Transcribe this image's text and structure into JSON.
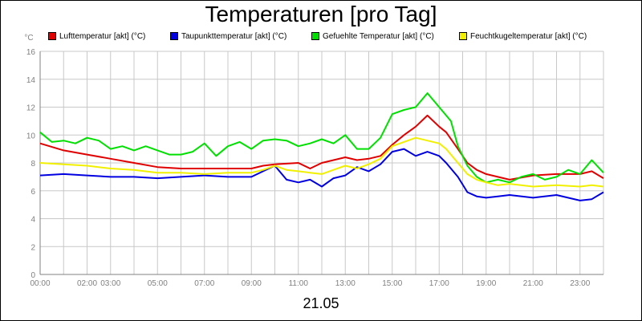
{
  "chart_data": {
    "type": "line",
    "title": "Temperaturen [pro Tag]",
    "xlabel": "21.05",
    "ylabel": "°C",
    "ylim": [
      0,
      16
    ],
    "yticks": [
      0,
      2,
      4,
      6,
      8,
      10,
      12,
      14,
      16
    ],
    "xlim": [
      0,
      24
    ],
    "x_tick_labels": [
      {
        "hour": 0,
        "label": "00:00"
      },
      {
        "hour": 2,
        "label": "02:00"
      },
      {
        "hour": 3,
        "label": "03:00"
      },
      {
        "hour": 5,
        "label": "05:00"
      },
      {
        "hour": 7,
        "label": "07:00"
      },
      {
        "hour": 9,
        "label": "09:00"
      },
      {
        "hour": 11,
        "label": "11:00"
      },
      {
        "hour": 13,
        "label": "13:00"
      },
      {
        "hour": 15,
        "label": "15:00"
      },
      {
        "hour": 17,
        "label": "17:00"
      },
      {
        "hour": 19,
        "label": "19:00"
      },
      {
        "hour": 21,
        "label": "21:00"
      },
      {
        "hour": 23,
        "label": "23:00"
      }
    ],
    "grid": true,
    "series": [
      {
        "name": "Lufttemperatur [akt] (°C)",
        "color": "#e00000",
        "x": [
          0,
          1,
          2,
          3,
          4,
          5,
          6,
          7,
          8,
          9,
          9.5,
          10,
          11,
          11.5,
          12,
          13,
          13.5,
          14,
          14.5,
          15,
          15.5,
          16,
          16.5,
          17,
          17.3,
          17.8,
          18.2,
          18.6,
          19,
          19.5,
          20,
          21,
          22,
          23,
          23.5,
          24
        ],
        "values": [
          9.4,
          8.9,
          8.6,
          8.3,
          8.0,
          7.7,
          7.6,
          7.6,
          7.6,
          7.6,
          7.8,
          7.9,
          8.0,
          7.6,
          8.0,
          8.4,
          8.2,
          8.3,
          8.5,
          9.3,
          10.0,
          10.6,
          11.4,
          10.6,
          10.2,
          9.0,
          8.0,
          7.5,
          7.2,
          7.0,
          6.8,
          7.1,
          7.2,
          7.2,
          7.4,
          6.9
        ]
      },
      {
        "name": "Taupunkttemperatur [akt] (°C)",
        "color": "#0000e0",
        "x": [
          0,
          1,
          2,
          3,
          4,
          5,
          6,
          7,
          8,
          9,
          9.5,
          10,
          10.5,
          11,
          11.5,
          12,
          12.5,
          13,
          13.5,
          14,
          14.5,
          15,
          15.5,
          16,
          16.5,
          17,
          17.3,
          17.8,
          18.2,
          18.6,
          19,
          19.5,
          20,
          21,
          22,
          23,
          23.5,
          24
        ],
        "values": [
          7.1,
          7.2,
          7.1,
          7.0,
          7.0,
          6.9,
          7.0,
          7.1,
          7.0,
          7.0,
          7.4,
          7.8,
          6.8,
          6.6,
          6.8,
          6.3,
          6.9,
          7.1,
          7.7,
          7.4,
          7.9,
          8.8,
          9.0,
          8.5,
          8.8,
          8.5,
          8.0,
          7.0,
          5.9,
          5.6,
          5.5,
          5.6,
          5.7,
          5.5,
          5.7,
          5.3,
          5.4,
          5.9
        ]
      },
      {
        "name": "Gefuehlte Temperatur [akt] (°C)",
        "color": "#00e000",
        "x": [
          0,
          0.5,
          1,
          1.5,
          2,
          2.5,
          3,
          3.5,
          4,
          4.5,
          5,
          5.5,
          6,
          6.5,
          7,
          7.5,
          8,
          8.5,
          9,
          9.5,
          10,
          10.5,
          11,
          11.5,
          12,
          12.5,
          13,
          13.5,
          14,
          14.5,
          15,
          15.5,
          16,
          16.5,
          17,
          17.5,
          17.8,
          18.2,
          18.6,
          19,
          19.5,
          20,
          20.5,
          21,
          21.5,
          22,
          22.5,
          23,
          23.5,
          24
        ],
        "values": [
          10.2,
          9.5,
          9.6,
          9.4,
          9.8,
          9.6,
          9.0,
          9.2,
          8.9,
          9.2,
          8.9,
          8.6,
          8.6,
          8.8,
          9.4,
          8.5,
          9.2,
          9.5,
          9.0,
          9.6,
          9.7,
          9.6,
          9.2,
          9.4,
          9.7,
          9.4,
          10.0,
          9.0,
          9.0,
          9.8,
          11.5,
          11.8,
          12.0,
          13.0,
          12.0,
          11.0,
          9.2,
          7.8,
          7.0,
          6.6,
          6.8,
          6.6,
          7.0,
          7.2,
          6.8,
          7.0,
          7.5,
          7.2,
          8.2,
          7.3
        ]
      },
      {
        "name": "Feuchtkugeltemperatur [akt] (°C)",
        "color": "#f0f000",
        "x": [
          0,
          1,
          2,
          3,
          4,
          5,
          6,
          7,
          8,
          9,
          9.5,
          10,
          10.5,
          11,
          11.5,
          12,
          12.5,
          13,
          13.5,
          14,
          14.5,
          15,
          15.5,
          16,
          16.5,
          17,
          17.3,
          17.8,
          18.2,
          18.6,
          19,
          19.5,
          20,
          21,
          22,
          23,
          23.5,
          24
        ],
        "values": [
          8.0,
          7.9,
          7.8,
          7.6,
          7.5,
          7.3,
          7.3,
          7.2,
          7.3,
          7.3,
          7.5,
          7.8,
          7.5,
          7.4,
          7.3,
          7.2,
          7.5,
          7.8,
          7.6,
          7.9,
          8.3,
          9.2,
          9.5,
          9.8,
          9.6,
          9.4,
          9.0,
          8.0,
          7.2,
          6.8,
          6.6,
          6.4,
          6.5,
          6.3,
          6.4,
          6.3,
          6.4,
          6.3
        ]
      }
    ]
  }
}
